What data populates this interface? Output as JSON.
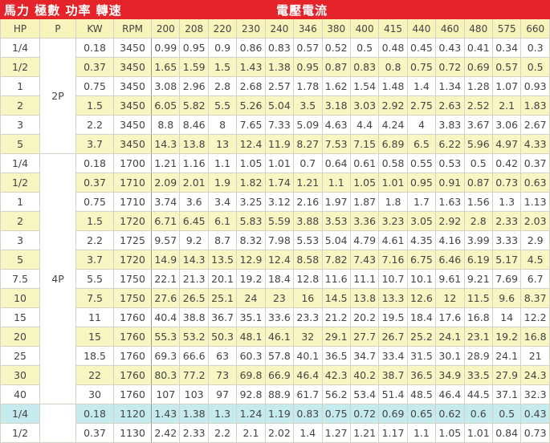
{
  "title_row": {
    "left": "馬力 極數 功率 轉速",
    "right": "電壓電流"
  },
  "columns": [
    "HP",
    "P",
    "KW",
    "RPM",
    "200",
    "208",
    "220",
    "230",
    "240",
    "346",
    "380",
    "400",
    "415",
    "440",
    "460",
    "480",
    "575",
    "660"
  ],
  "colors": {
    "header_red": "#e5232a",
    "row_yellow": "#f8f6c2",
    "row_cyan": "#c5ebef"
  },
  "groups": [
    {
      "pole": "2P",
      "rows": [
        {
          "hp": "1/4",
          "kw": "0.18",
          "rpm": "3450",
          "a": [
            "0.99",
            "0.95",
            "0.9",
            "0.86",
            "0.83",
            "0.57",
            "0.52",
            "0.5",
            "0.48",
            "0.45",
            "0.43",
            "0.41",
            "0.34",
            "0.3"
          ],
          "shade": "white"
        },
        {
          "hp": "1/2",
          "kw": "0.37",
          "rpm": "3450",
          "a": [
            "1.65",
            "1.59",
            "1.5",
            "1.43",
            "1.38",
            "0.95",
            "0.87",
            "0.83",
            "0.8",
            "0.75",
            "0.72",
            "0.69",
            "0.57",
            "0.5"
          ],
          "shade": "yellow"
        },
        {
          "hp": "1",
          "kw": "0.75",
          "rpm": "3450",
          "a": [
            "3.08",
            "2.96",
            "2.8",
            "2.68",
            "2.57",
            "1.78",
            "1.62",
            "1.54",
            "1.48",
            "1.4",
            "1.34",
            "1.28",
            "1.07",
            "0.93"
          ],
          "shade": "white"
        },
        {
          "hp": "2",
          "kw": "1.5",
          "rpm": "3450",
          "a": [
            "6.05",
            "5.82",
            "5.5",
            "5.26",
            "5.04",
            "3.5",
            "3.18",
            "3.03",
            "2.92",
            "2.75",
            "2.63",
            "2.52",
            "2.1",
            "1.83"
          ],
          "shade": "yellow"
        },
        {
          "hp": "3",
          "kw": "2.2",
          "rpm": "3450",
          "a": [
            "8.8",
            "8.46",
            "8",
            "7.65",
            "7.33",
            "5.09",
            "4.63",
            "4.4",
            "4.24",
            "4",
            "3.83",
            "3.67",
            "3.06",
            "2.67"
          ],
          "shade": "white"
        },
        {
          "hp": "5",
          "kw": "3.7",
          "rpm": "3450",
          "a": [
            "14.3",
            "13.8",
            "13",
            "12.4",
            "11.9",
            "8.27",
            "7.53",
            "7.15",
            "6.89",
            "6.5",
            "6.22",
            "5.96",
            "4.97",
            "4.33"
          ],
          "shade": "yellow"
        }
      ]
    },
    {
      "pole": "4P",
      "rows": [
        {
          "hp": "1/4",
          "kw": "0.18",
          "rpm": "1700",
          "a": [
            "1.21",
            "1.16",
            "1.1",
            "1.05",
            "1.01",
            "0.7",
            "0.64",
            "0.61",
            "0.58",
            "0.55",
            "0.53",
            "0.5",
            "0.42",
            "0.37"
          ],
          "shade": "white"
        },
        {
          "hp": "1/2",
          "kw": "0.37",
          "rpm": "1710",
          "a": [
            "2.09",
            "2.01",
            "1.9",
            "1.82",
            "1.74",
            "1.21",
            "1.1",
            "1.05",
            "1.01",
            "0.95",
            "0.91",
            "0.87",
            "0.73",
            "0.63"
          ],
          "shade": "yellow"
        },
        {
          "hp": "1",
          "kw": "0.75",
          "rpm": "1710",
          "a": [
            "3.74",
            "3.6",
            "3.4",
            "3.25",
            "3.12",
            "2.16",
            "1.97",
            "1.87",
            "1.8",
            "1.7",
            "1.63",
            "1.56",
            "1.3",
            "1.13"
          ],
          "shade": "white"
        },
        {
          "hp": "2",
          "kw": "1.5",
          "rpm": "1720",
          "a": [
            "6.71",
            "6.45",
            "6.1",
            "5.83",
            "5.59",
            "3.88",
            "3.53",
            "3.36",
            "3.23",
            "3.05",
            "2.92",
            "2.8",
            "2.33",
            "2.03"
          ],
          "shade": "yellow"
        },
        {
          "hp": "3",
          "kw": "2.2",
          "rpm": "1725",
          "a": [
            "9.57",
            "9.2",
            "8.7",
            "8.32",
            "7.98",
            "5.53",
            "5.04",
            "4.79",
            "4.61",
            "4.35",
            "4.16",
            "3.99",
            "3.33",
            "2.9"
          ],
          "shade": "white"
        },
        {
          "hp": "5",
          "kw": "3.7",
          "rpm": "1720",
          "a": [
            "14.9",
            "14.3",
            "13.5",
            "12.9",
            "12.4",
            "8.58",
            "7.82",
            "7.43",
            "7.16",
            "6.75",
            "6.46",
            "6.19",
            "5.17",
            "4.5"
          ],
          "shade": "yellow"
        },
        {
          "hp": "7.5",
          "kw": "5.5",
          "rpm": "1750",
          "a": [
            "22.1",
            "21.3",
            "20.1",
            "19.2",
            "18.4",
            "12.8",
            "11.6",
            "11.1",
            "10.7",
            "10.1",
            "9.61",
            "9.21",
            "7.69",
            "6.7"
          ],
          "shade": "white"
        },
        {
          "hp": "10",
          "kw": "7.5",
          "rpm": "1750",
          "a": [
            "27.6",
            "26.5",
            "25.1",
            "24",
            "23",
            "16",
            "14.5",
            "13.8",
            "13.3",
            "12.6",
            "12",
            "11.5",
            "9.6",
            "8.37"
          ],
          "shade": "yellow"
        },
        {
          "hp": "15",
          "kw": "11",
          "rpm": "1760",
          "a": [
            "40.4",
            "38.8",
            "36.7",
            "35.1",
            "33.6",
            "23.3",
            "21.2",
            "20.2",
            "19.5",
            "18.4",
            "17.6",
            "16.8",
            "14",
            "12.2"
          ],
          "shade": "white"
        },
        {
          "hp": "20",
          "kw": "15",
          "rpm": "1760",
          "a": [
            "55.3",
            "53.2",
            "50.3",
            "48.1",
            "46.1",
            "32",
            "29.1",
            "27.7",
            "26.7",
            "25.2",
            "24.1",
            "23.1",
            "19.2",
            "16.8"
          ],
          "shade": "yellow"
        },
        {
          "hp": "25",
          "kw": "18.5",
          "rpm": "1760",
          "a": [
            "69.3",
            "66.6",
            "63",
            "60.3",
            "57.8",
            "40.1",
            "36.5",
            "34.7",
            "33.4",
            "31.5",
            "30.1",
            "28.9",
            "24.1",
            "21"
          ],
          "shade": "white"
        },
        {
          "hp": "30",
          "kw": "22",
          "rpm": "1760",
          "a": [
            "80.3",
            "77.2",
            "73",
            "69.8",
            "66.9",
            "46.4",
            "42.3",
            "40.2",
            "38.7",
            "36.5",
            "34.9",
            "33.5",
            "27.9",
            "24.3"
          ],
          "shade": "yellow"
        },
        {
          "hp": "40",
          "kw": "30",
          "rpm": "1760",
          "a": [
            "107",
            "103",
            "97",
            "92.8",
            "88.9",
            "61.7",
            "56.2",
            "53.4",
            "51.4",
            "48.5",
            "46.4",
            "44.5",
            "37.1",
            "32.3"
          ],
          "shade": "white"
        }
      ]
    },
    {
      "pole": "",
      "rows": [
        {
          "hp": "1/4",
          "kw": "0.18",
          "rpm": "1120",
          "a": [
            "1.43",
            "1.38",
            "1.3",
            "1.24",
            "1.19",
            "0.83",
            "0.75",
            "0.72",
            "0.69",
            "0.65",
            "0.62",
            "0.6",
            "0.5",
            "0.43"
          ],
          "shade": "cyan"
        },
        {
          "hp": "1/2",
          "kw": "0.37",
          "rpm": "1130",
          "a": [
            "2.42",
            "2.33",
            "2.2",
            "2.1",
            "2.02",
            "1.4",
            "1.27",
            "1.21",
            "1.17",
            "1.1",
            "1.05",
            "1.01",
            "0.84",
            "0.73"
          ],
          "shade": "white"
        }
      ]
    }
  ]
}
